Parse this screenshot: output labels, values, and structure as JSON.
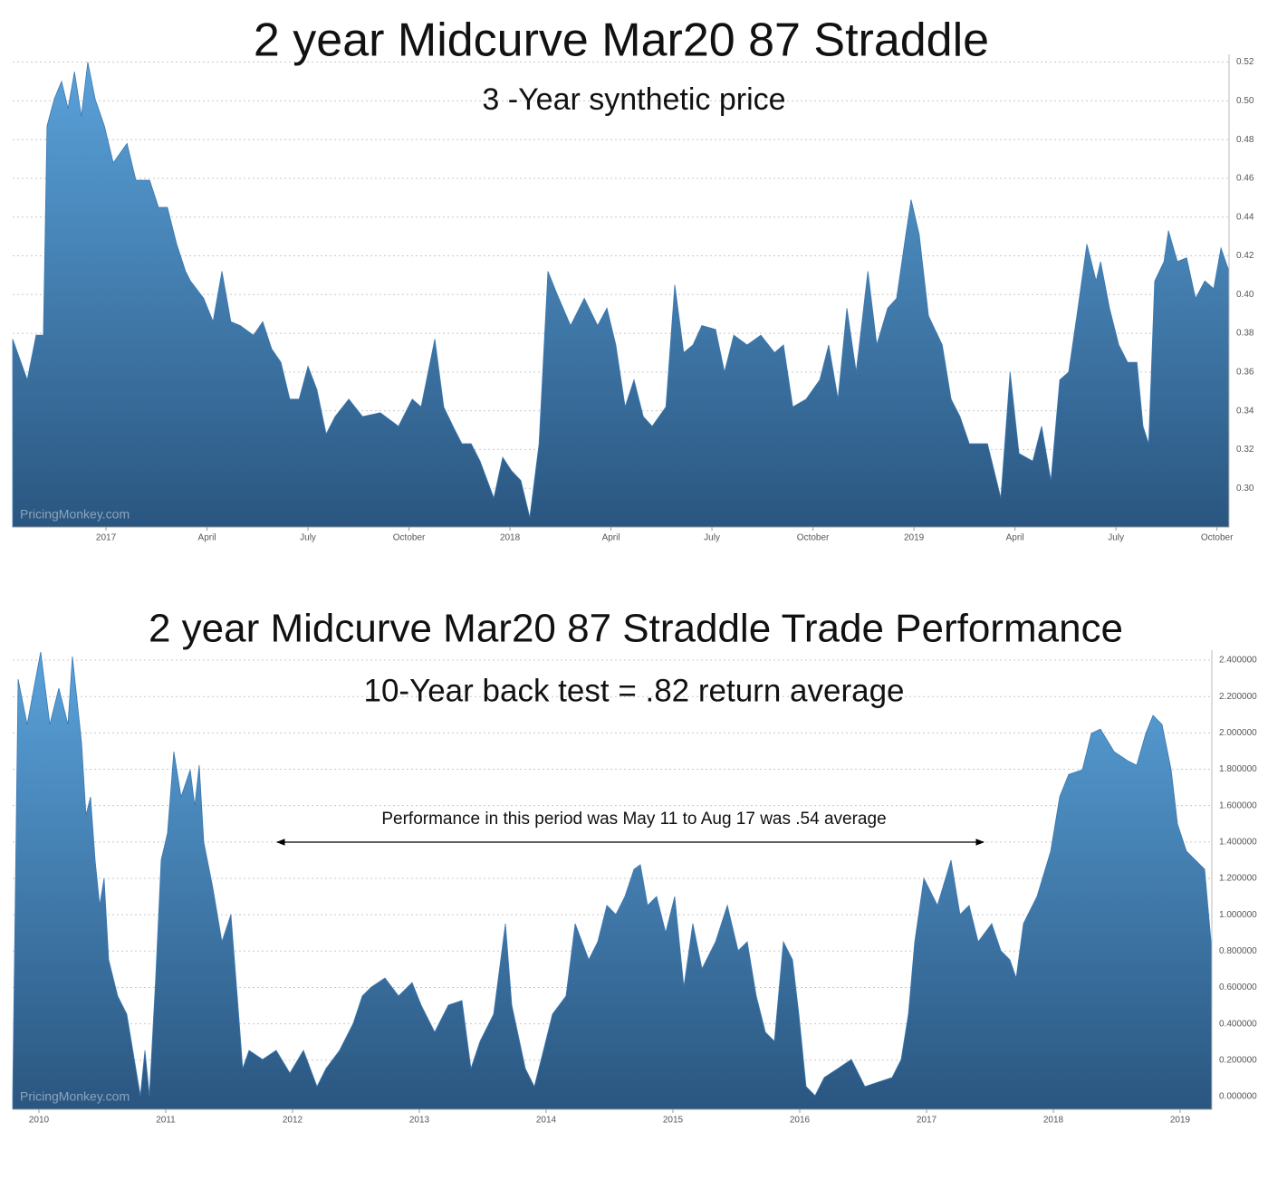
{
  "chart_data": [
    {
      "type": "area",
      "title": "2 year Midcurve Mar20 87 Straddle",
      "subtitle": "3 -Year synthetic price",
      "watermark": "PricingMonkey.com",
      "color": "#3a78b0",
      "gradient": [
        "#5aa2da",
        "#2a5680"
      ],
      "grid": true,
      "x": [
        2016.769,
        2016.805,
        2016.827,
        2016.845,
        2016.854,
        2016.872,
        2016.89,
        2016.906,
        2016.922,
        2016.939,
        2016.955,
        2016.973,
        2016.996,
        2017.018,
        2017.052,
        2017.074,
        2017.108,
        2017.13,
        2017.152,
        2017.175,
        2017.197,
        2017.209,
        2017.242,
        2017.265,
        2017.287,
        2017.309,
        2017.332,
        2017.365,
        2017.388,
        2017.41,
        2017.433,
        2017.455,
        2017.478,
        2017.5,
        2017.522,
        2017.545,
        2017.567,
        2017.601,
        2017.635,
        2017.679,
        2017.724,
        2017.758,
        2017.78,
        2017.814,
        2017.836,
        2017.859,
        2017.881,
        2017.904,
        2017.926,
        2017.96,
        2017.982,
        2018.004,
        2018.027,
        2018.049,
        2018.072,
        2018.094,
        2018.117,
        2018.15,
        2018.184,
        2018.217,
        2018.24,
        2018.262,
        2018.285,
        2018.307,
        2018.33,
        2018.352,
        2018.386,
        2018.408,
        2018.43,
        2018.453,
        2018.475,
        2018.509,
        2018.531,
        2018.554,
        2018.587,
        2018.621,
        2018.655,
        2018.677,
        2018.7,
        2018.733,
        2018.767,
        2018.789,
        2018.812,
        2018.834,
        2018.857,
        2018.886,
        2018.908,
        2018.935,
        2018.957,
        2018.98,
        2018.993,
        2019.013,
        2019.036,
        2019.07,
        2019.092,
        2019.114,
        2019.137,
        2019.182,
        2019.215,
        2019.238,
        2019.26,
        2019.294,
        2019.316,
        2019.339,
        2019.361,
        2019.383,
        2019.406,
        2019.428,
        2019.451,
        2019.462,
        2019.484,
        2019.507,
        2019.529,
        2019.552,
        2019.567,
        2019.581,
        2019.596,
        2019.619,
        2019.63,
        2019.652,
        2019.675,
        2019.697,
        2019.72,
        2019.742,
        2019.76,
        2019.78
      ],
      "values": [
        0.377,
        0.356,
        0.379,
        0.379,
        0.487,
        0.501,
        0.51,
        0.496,
        0.515,
        0.492,
        0.52,
        0.501,
        0.487,
        0.468,
        0.478,
        0.459,
        0.459,
        0.445,
        0.445,
        0.426,
        0.412,
        0.407,
        0.398,
        0.386,
        0.412,
        0.386,
        0.384,
        0.379,
        0.386,
        0.372,
        0.365,
        0.346,
        0.346,
        0.363,
        0.351,
        0.328,
        0.337,
        0.346,
        0.337,
        0.339,
        0.332,
        0.346,
        0.342,
        0.377,
        0.342,
        0.332,
        0.323,
        0.323,
        0.314,
        0.295,
        0.316,
        0.309,
        0.304,
        0.285,
        0.323,
        0.412,
        0.4,
        0.384,
        0.398,
        0.384,
        0.393,
        0.374,
        0.342,
        0.356,
        0.337,
        0.332,
        0.342,
        0.405,
        0.37,
        0.374,
        0.384,
        0.382,
        0.36,
        0.379,
        0.374,
        0.379,
        0.37,
        0.374,
        0.342,
        0.346,
        0.356,
        0.374,
        0.346,
        0.393,
        0.36,
        0.412,
        0.374,
        0.393,
        0.398,
        0.431,
        0.449,
        0.431,
        0.389,
        0.374,
        0.346,
        0.337,
        0.323,
        0.323,
        0.295,
        0.36,
        0.318,
        0.314,
        0.332,
        0.304,
        0.356,
        0.36,
        0.393,
        0.426,
        0.407,
        0.417,
        0.393,
        0.374,
        0.365,
        0.365,
        0.332,
        0.323,
        0.407,
        0.417,
        0.433,
        0.417,
        0.419,
        0.398,
        0.407,
        0.403,
        0.424,
        0.412
      ],
      "xlim": [
        2016.769,
        2019.78
      ],
      "xticks": [
        2017,
        {
          "value": 2017.25,
          "label": "April"
        },
        {
          "value": 2017.5,
          "label": "July"
        },
        {
          "value": 2017.75,
          "label": "October"
        },
        2018,
        {
          "value": 2018.25,
          "label": "April"
        },
        {
          "value": 2018.5,
          "label": "July"
        },
        {
          "value": 2018.75,
          "label": "October"
        },
        2019,
        {
          "value": 2019.25,
          "label": "April"
        },
        {
          "value": 2019.5,
          "label": "July"
        },
        {
          "value": 2019.75,
          "label": "October"
        }
      ],
      "ylim": [
        0.28,
        0.524
      ],
      "yticks": [
        {
          "value": 0.3,
          "label": "0.30"
        },
        0.32,
        0.34,
        0.36,
        0.38,
        {
          "value": 0.4,
          "label": "0.40"
        },
        0.42,
        0.44,
        0.46,
        0.48,
        {
          "value": 0.5,
          "label": "0.50"
        },
        0.52
      ]
    },
    {
      "type": "area",
      "title": "2 year Midcurve Mar20 87 Straddle Trade Performance",
      "subtitle": "10-Year back test = .82 return average",
      "watermark": "PricingMonkey.com",
      "annotation": "Performance in this period was May 11 to Aug 17 was .54 average",
      "color": "#3a78b0",
      "gradient": [
        "#5aa2da",
        "#2a5680"
      ],
      "grid": true,
      "x": [
        2009.793,
        2009.836,
        2009.907,
        2010.014,
        2010.086,
        2010.157,
        2010.229,
        2010.264,
        2010.336,
        2010.371,
        2010.407,
        2010.443,
        2010.479,
        2010.514,
        2010.55,
        2010.621,
        2010.693,
        2010.764,
        2010.8,
        2010.836,
        2010.871,
        2010.921,
        2010.964,
        2011.014,
        2011.064,
        2011.121,
        2011.193,
        2011.229,
        2011.264,
        2011.3,
        2011.371,
        2011.443,
        2011.514,
        2011.564,
        2011.607,
        2011.657,
        2011.764,
        2011.871,
        2011.979,
        2012.086,
        2012.193,
        2012.264,
        2012.371,
        2012.479,
        2012.55,
        2012.621,
        2012.729,
        2012.836,
        2012.943,
        2013.014,
        2013.121,
        2013.229,
        2013.336,
        2013.407,
        2013.479,
        2013.586,
        2013.679,
        2013.729,
        2013.836,
        2013.907,
        2013.979,
        2014.05,
        2014.157,
        2014.229,
        2014.336,
        2014.407,
        2014.479,
        2014.55,
        2014.621,
        2014.693,
        2014.743,
        2014.8,
        2014.871,
        2014.943,
        2015.014,
        2015.086,
        2015.157,
        2015.229,
        2015.336,
        2015.429,
        2015.514,
        2015.586,
        2015.657,
        2015.729,
        2015.8,
        2015.871,
        2015.943,
        2015.993,
        2016.05,
        2016.121,
        2016.193,
        2016.3,
        2016.407,
        2016.514,
        2016.621,
        2016.729,
        2016.8,
        2016.857,
        2016.907,
        2016.979,
        2017.086,
        2017.193,
        2017.264,
        2017.336,
        2017.407,
        2017.514,
        2017.586,
        2017.657,
        2017.707,
        2017.764,
        2017.871,
        2017.979,
        2018.05,
        2018.121,
        2018.229,
        2018.3,
        2018.371,
        2018.479,
        2018.586,
        2018.657,
        2018.729,
        2018.786,
        2018.857,
        2018.929,
        2018.979,
        2019.05,
        2019.121,
        2019.193,
        2019.25
      ],
      "values": [
        0,
        2.295,
        2.046,
        2.445,
        2.046,
        2.246,
        2.046,
        2.42,
        1.947,
        1.548,
        1.648,
        1.3,
        1.051,
        1.2,
        0.752,
        0.553,
        0.453,
        0.154,
        0.005,
        0.254,
        0.005,
        0.652,
        1.3,
        1.449,
        1.897,
        1.648,
        1.797,
        1.598,
        1.822,
        1.399,
        1.15,
        0.851,
        1.001,
        0.553,
        0.154,
        0.254,
        0.204,
        0.254,
        0.129,
        0.254,
        0.055,
        0.154,
        0.254,
        0.403,
        0.553,
        0.602,
        0.652,
        0.553,
        0.627,
        0.503,
        0.354,
        0.503,
        0.528,
        0.154,
        0.304,
        0.453,
        0.951,
        0.503,
        0.154,
        0.055,
        0.254,
        0.453,
        0.553,
        0.951,
        0.752,
        0.851,
        1.051,
        1.001,
        1.1,
        1.25,
        1.275,
        1.051,
        1.1,
        0.901,
        1.1,
        0.602,
        0.951,
        0.702,
        0.851,
        1.051,
        0.802,
        0.851,
        0.553,
        0.354,
        0.304,
        0.851,
        0.752,
        0.453,
        0.055,
        0.005,
        0.105,
        0.154,
        0.204,
        0.055,
        0.08,
        0.105,
        0.204,
        0.453,
        0.851,
        1.2,
        1.051,
        1.3,
        1.001,
        1.051,
        0.851,
        0.951,
        0.802,
        0.752,
        0.652,
        0.951,
        1.1,
        1.349,
        1.648,
        1.772,
        1.797,
        1.997,
        2.021,
        1.897,
        1.847,
        1.822,
        1.997,
        2.096,
        2.046,
        1.797,
        1.499,
        1.349,
        1.3,
        1.25,
        0.802
      ],
      "xlim": [
        2009.793,
        2019.25
      ],
      "xticks": [
        2010,
        2011,
        2012,
        2013,
        2014,
        2015,
        2016,
        2017,
        2018,
        2019
      ],
      "ylim": [
        -0.07,
        2.455
      ],
      "yticks": [
        {
          "value": 0,
          "label": "0.000000"
        },
        {
          "value": 0.2,
          "label": "0.200000"
        },
        {
          "value": 0.4,
          "label": "0.400000"
        },
        {
          "value": 0.6,
          "label": "0.600000"
        },
        {
          "value": 0.8,
          "label": "0.800000"
        },
        {
          "value": 1,
          "label": "1.000000"
        },
        {
          "value": 1.2,
          "label": "1.200000"
        },
        {
          "value": 1.4,
          "label": "1.400000"
        },
        {
          "value": 1.6,
          "label": "1.600000"
        },
        {
          "value": 1.8,
          "label": "1.800000"
        },
        {
          "value": 2,
          "label": "2.000000"
        },
        {
          "value": 2.2,
          "label": "2.200000"
        },
        {
          "value": 2.4,
          "label": "2.400000"
        }
      ]
    }
  ]
}
